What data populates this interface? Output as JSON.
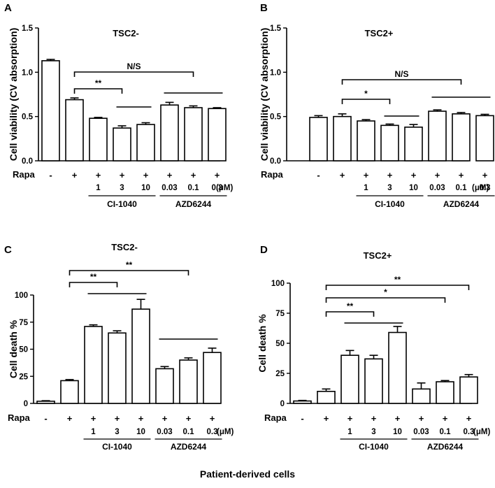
{
  "caption": "Patient-derived cells",
  "row_label": "Rapa",
  "unit": "(μM)",
  "symbols": [
    "-",
    "+",
    "+",
    "+",
    "+",
    "+",
    "+",
    "+"
  ],
  "concentrations": [
    "",
    "",
    "1",
    "3",
    "10",
    "0.03",
    "0.1",
    "0.3"
  ],
  "groups": [
    "CI-1040",
    "AZD6244"
  ],
  "chart_data": [
    {
      "panel": "A",
      "type": "bar",
      "title": "TSC2-",
      "ylabel": "Cell viability (CV absorption)",
      "ylim": [
        0,
        1.5
      ],
      "yticks": [
        "0.0",
        "0.5",
        "1.0",
        "1.5"
      ],
      "values": [
        1.13,
        0.69,
        0.48,
        0.37,
        0.41,
        0.63,
        0.6,
        0.59
      ],
      "errors": [
        0.015,
        0.02,
        0.01,
        0.025,
        0.02,
        0.03,
        0.02,
        0.01
      ],
      "significance": [
        {
          "label": "N/S",
          "from": 1,
          "to": 6
        },
        {
          "label": "**",
          "from": 1,
          "to": 3
        },
        {
          "label": "",
          "from": 3,
          "to": 4
        },
        {
          "label": "",
          "from": 5,
          "to": 7
        }
      ]
    },
    {
      "panel": "B",
      "type": "bar",
      "title": "TSC2+",
      "ylabel": "Cell viability (CV absorption)",
      "ylim": [
        0,
        1.5
      ],
      "yticks": [
        "0.0",
        "0.5",
        "1.0",
        "1.5"
      ],
      "values": [
        0.49,
        0.5,
        0.45,
        0.4,
        0.38,
        0.56,
        0.53,
        0.51
      ],
      "errors": [
        0.02,
        0.03,
        0.015,
        0.015,
        0.03,
        0.015,
        0.015,
        0.015
      ],
      "significance": [
        {
          "label": "N/S",
          "from": 1,
          "to": 6
        },
        {
          "label": "*",
          "from": 1,
          "to": 3
        },
        {
          "label": "",
          "from": 3,
          "to": 4
        },
        {
          "label": "",
          "from": 5,
          "to": 7
        }
      ]
    },
    {
      "panel": "C",
      "type": "bar",
      "title": "TSC2-",
      "ylabel": "Cell death %",
      "ylim": [
        0,
        100
      ],
      "yticks": [
        "0",
        "25",
        "50",
        "75",
        "100"
      ],
      "values": [
        2,
        21,
        71,
        65,
        87,
        32,
        40,
        47
      ],
      "errors": [
        0.5,
        1,
        1.5,
        2,
        9,
        2,
        2,
        4
      ],
      "significance": [
        {
          "label": "**",
          "from": 1,
          "to": 6
        },
        {
          "label": "**",
          "from": 1,
          "to": 3
        },
        {
          "label": "",
          "from": 2,
          "to": 4
        },
        {
          "label": "",
          "from": 5,
          "to": 7
        }
      ]
    },
    {
      "panel": "D",
      "type": "bar",
      "title": "TSC2+",
      "ylabel": "Cell death %",
      "ylim": [
        0,
        100
      ],
      "yticks": [
        "0",
        "25",
        "50",
        "75",
        "100"
      ],
      "values": [
        2,
        10,
        40,
        37,
        59,
        12,
        18,
        22
      ],
      "errors": [
        0.5,
        2,
        4,
        3,
        5,
        5,
        1,
        2
      ],
      "significance": [
        {
          "label": "**",
          "from": 1,
          "to": 7
        },
        {
          "label": "*",
          "from": 1,
          "to": 6
        },
        {
          "label": "**",
          "from": 1,
          "to": 3
        },
        {
          "label": "",
          "from": 2,
          "to": 4
        }
      ]
    }
  ]
}
